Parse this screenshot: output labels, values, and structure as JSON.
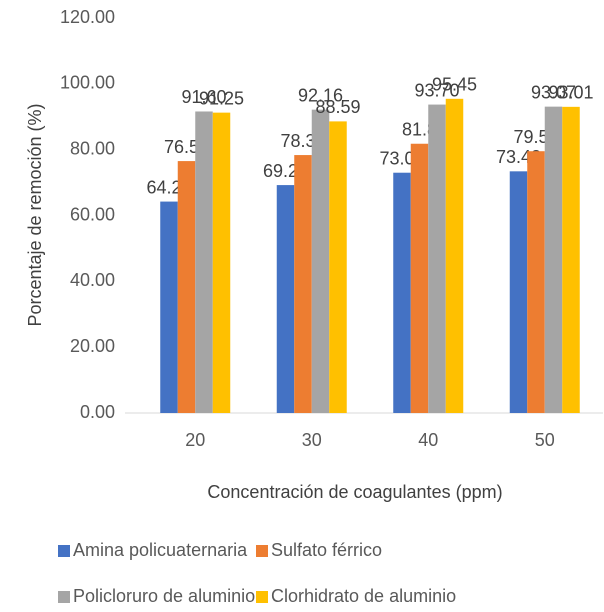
{
  "chart_data": {
    "type": "bar",
    "x_label": "Concentración de coagulantes (ppm)",
    "y_label": "Porcentaje de remoción (%)",
    "categories": [
      "20",
      "30",
      "40",
      "50"
    ],
    "series": [
      {
        "name": "Amina policuaternaria",
        "color": "#4472c4",
        "values": [
          64.23,
          69.24,
          73.0,
          73.42
        ],
        "value_labels": [
          "64.23",
          "69.24",
          "73.00",
          "73.42"
        ]
      },
      {
        "name": "Sulfato férrico",
        "color": "#ed7d31",
        "values": [
          76.53,
          78.36,
          81.8,
          79.53
        ],
        "value_labels": [
          "76.53",
          "78.36",
          "81.8",
          "79.53"
        ]
      },
      {
        "name": "Policloruro de aluminio",
        "color": "#a5a5a5",
        "values": [
          91.6,
          92.16,
          93.7,
          93.07
        ],
        "value_labels": [
          "91.60",
          "92.16",
          "93.70",
          "93.07"
        ]
      },
      {
        "name": "Clorhidrato de aluminio",
        "color": "#ffc000",
        "values": [
          91.25,
          88.59,
          95.45,
          93.01
        ],
        "value_labels": [
          "91.25",
          "88.59",
          "95.45",
          "93.01"
        ]
      }
    ],
    "ylim": [
      0,
      120
    ],
    "yticks": [
      {
        "value": 0,
        "label": "0.00"
      },
      {
        "value": 20,
        "label": "20.00"
      },
      {
        "value": 40,
        "label": "40.00"
      },
      {
        "value": 60,
        "label": "60.00"
      },
      {
        "value": 80,
        "label": "80.00"
      },
      {
        "value": 100,
        "label": "100.00"
      },
      {
        "value": 120,
        "label": "120.00"
      }
    ],
    "grid": false,
    "legend": "bottom"
  }
}
